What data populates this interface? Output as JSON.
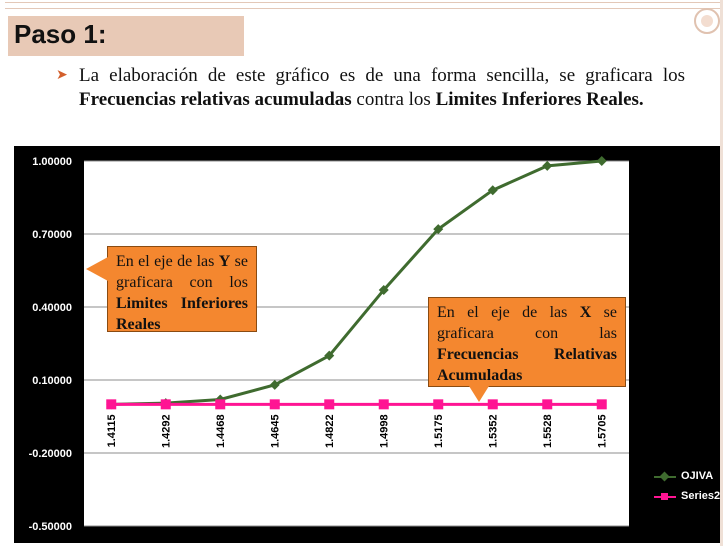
{
  "slide": {
    "title": "Paso 1:",
    "bullet_icon": "bullet-arrow-icon",
    "bullet_parts": [
      {
        "text": "La elaboración de este gráfico es de una forma sencilla, se graficara los ",
        "bold": false
      },
      {
        "text": "Frecuencias relativas acumuladas",
        "bold": true
      },
      {
        "text": " contra los ",
        "bold": false
      },
      {
        "text": "Limites Inferiores Reales.",
        "bold": true
      }
    ]
  },
  "callouts": {
    "y_axis": {
      "parts": [
        {
          "text": "En el eje de las ",
          "bold": false
        },
        {
          "text": "Y",
          "bold": true
        },
        {
          "text": " se graficara con los ",
          "bold": false
        },
        {
          "text": "Limites Inferiores Reales",
          "bold": true
        }
      ]
    },
    "x_axis": {
      "parts": [
        {
          "text": "En el eje de las ",
          "bold": false
        },
        {
          "text": "X",
          "bold": true
        },
        {
          "text": " se graficara con las ",
          "bold": false
        },
        {
          "text": "Frecuencias Relativas Acumuladas",
          "bold": true
        }
      ]
    }
  },
  "colors": {
    "accent": "#d35f2c",
    "title_bar": "#e8c9b6",
    "chart_background": "#000000",
    "series_ojiva": "#3f6b2f",
    "series_2": "#ff1493",
    "callout": "#f4872f"
  },
  "chart_data": {
    "type": "line",
    "categories": [
      "1.4115",
      "1.4292",
      "1.4468",
      "1.4645",
      "1.4822",
      "1.4998",
      "1.5175",
      "1.5352",
      "1.5528",
      "1.5705"
    ],
    "ylim": [
      -0.5,
      1.0
    ],
    "yticks": [
      "1.00000",
      "0.70000",
      "0.40000",
      "0.10000",
      "-0.20000",
      "-0.50000"
    ],
    "ytick_values": [
      1.0,
      0.7,
      0.4,
      0.1,
      -0.2,
      -0.5
    ],
    "grid": true,
    "legend_position": "right",
    "series": [
      {
        "name": "OJIVA",
        "values": [
          0.0,
          0.005,
          0.02,
          0.08,
          0.2,
          0.47,
          0.72,
          0.88,
          0.98,
          1.0
        ]
      },
      {
        "name": "Series2",
        "values": [
          0.0,
          0.0,
          0.0,
          0.0,
          0.0,
          0.0,
          0.0,
          0.0,
          0.0,
          0.0
        ]
      }
    ]
  }
}
